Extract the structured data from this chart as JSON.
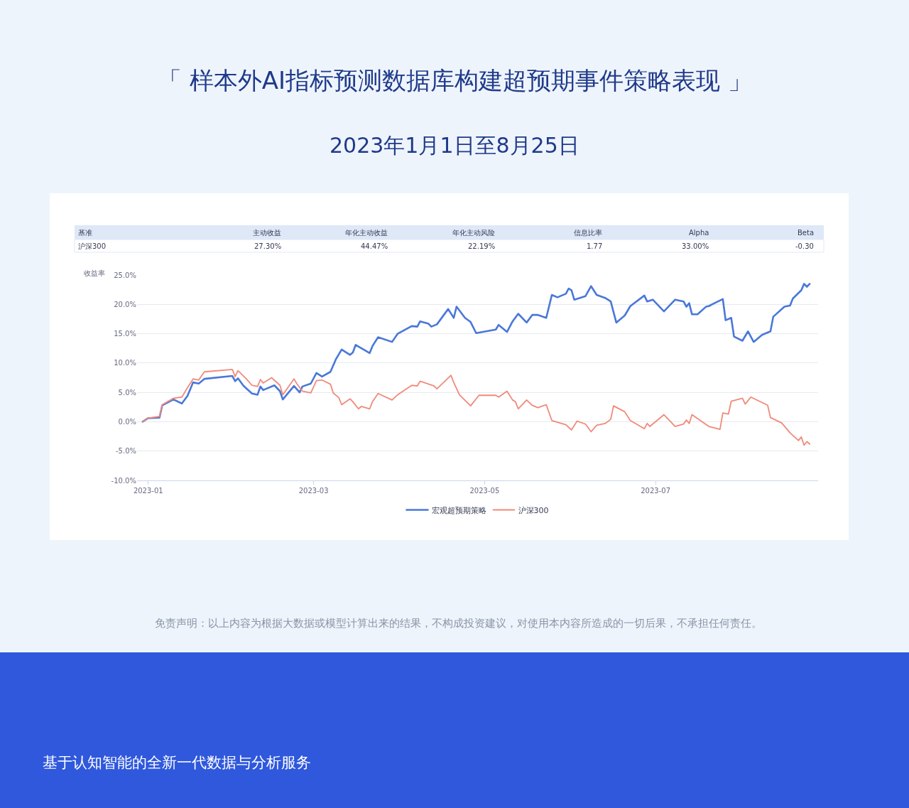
{
  "chart_data": {
    "type": "line",
    "title": "「 样本外AI指标预测数据库构建超预期事件策略表现 」",
    "subtitle": "2023年1月1日至8月25日",
    "ylabel": "收益率",
    "annotations": [
      "基准",
      "主动收益",
      "年化主动收益",
      "年化主动风险",
      "信息比率",
      "Alpha",
      "Beta",
      "沪深300",
      "27.30%",
      "44.47%",
      "22.19%",
      "1.77",
      "33.00%",
      "-0.30",
      "免责声明：以上内容为根据大数据或模型计算出来的结果，不构成投资建议，对使用本内容所造成的一切后果，不承担任何责任。",
      "基于认知智能的全新一代数据与分析服务"
    ],
    "xlim": [
      "2022-12-28",
      "2023-08-28"
    ],
    "xticks": [
      {
        "value": "2023-01-01",
        "label": "2023-01"
      },
      {
        "value": "2023-03-01",
        "label": "2023-03"
      },
      {
        "value": "2023-05-01",
        "label": "2023-05"
      },
      {
        "value": "2023-07-01",
        "label": "2023-07"
      }
    ],
    "ylim": [
      -10,
      25
    ],
    "yticks": [
      {
        "value": -10,
        "label": "-10.0%"
      },
      {
        "value": -5,
        "label": "-5.0%"
      },
      {
        "value": 0,
        "label": "0.0%"
      },
      {
        "value": 5,
        "label": "5.0%"
      },
      {
        "value": 10,
        "label": "10.0%"
      },
      {
        "value": 15,
        "label": "15.0%"
      },
      {
        "value": 20,
        "label": "20.0%"
      },
      {
        "value": 25,
        "label": "25.0%"
      }
    ],
    "grid": "y",
    "legend": "bottom",
    "marker": "none",
    "line_style": "solid",
    "series": [
      {
        "name": "宏观超预期策略",
        "color": "#4a78d8",
        "x": [
          "2022-12-30",
          "2023-01-01",
          "2023-01-05",
          "2023-01-06",
          "2023-01-10",
          "2023-01-13",
          "2023-01-15",
          "2023-01-17",
          "2023-01-19",
          "2023-01-21",
          "2023-01-31",
          "2023-02-01",
          "2023-02-02",
          "2023-02-04",
          "2023-02-07",
          "2023-02-09",
          "2023-02-10",
          "2023-02-11",
          "2023-02-15",
          "2023-02-17",
          "2023-02-18",
          "2023-02-22",
          "2023-02-24",
          "2023-02-25",
          "2023-02-28",
          "2023-03-02",
          "2023-03-04",
          "2023-03-07",
          "2023-03-09",
          "2023-03-11",
          "2023-03-14",
          "2023-03-15",
          "2023-03-16",
          "2023-03-21",
          "2023-03-22",
          "2023-03-24",
          "2023-03-29",
          "2023-03-31",
          "2023-04-05",
          "2023-04-07",
          "2023-04-08",
          "2023-04-11",
          "2023-04-12",
          "2023-04-14",
          "2023-04-18",
          "2023-04-20",
          "2023-04-21",
          "2023-04-24",
          "2023-04-26",
          "2023-04-28",
          "2023-05-05",
          "2023-05-06",
          "2023-05-09",
          "2023-05-11",
          "2023-05-13",
          "2023-05-16",
          "2023-05-18",
          "2023-05-20",
          "2023-05-23",
          "2023-05-25",
          "2023-05-27",
          "2023-05-30",
          "2023-05-31",
          "2023-06-01",
          "2023-06-02",
          "2023-06-06",
          "2023-06-08",
          "2023-06-10",
          "2023-06-13",
          "2023-06-15",
          "2023-06-17",
          "2023-06-20",
          "2023-06-22",
          "2023-06-27",
          "2023-06-28",
          "2023-06-30",
          "2023-07-04",
          "2023-07-08",
          "2023-07-11",
          "2023-07-12",
          "2023-07-13",
          "2023-07-14",
          "2023-07-16",
          "2023-07-19",
          "2023-07-20",
          "2023-07-22",
          "2023-07-25",
          "2023-07-26",
          "2023-07-28",
          "2023-07-29",
          "2023-08-01",
          "2023-08-03",
          "2023-08-05",
          "2023-08-08",
          "2023-08-11",
          "2023-08-12",
          "2023-08-16",
          "2023-08-18",
          "2023-08-19",
          "2023-08-22",
          "2023-08-23",
          "2023-08-24",
          "2023-08-25"
        ],
        "values": [
          0.0,
          0.6,
          0.7,
          2.8,
          3.8,
          3.1,
          4.4,
          6.7,
          6.5,
          7.3,
          7.8,
          6.9,
          7.4,
          6.1,
          4.8,
          4.6,
          6.0,
          5.4,
          6.2,
          5.2,
          3.8,
          6.1,
          5.0,
          6.0,
          6.5,
          8.3,
          7.7,
          8.5,
          10.7,
          12.3,
          11.4,
          11.8,
          13.1,
          11.7,
          12.9,
          14.4,
          13.6,
          15.0,
          16.3,
          16.2,
          17.1,
          16.7,
          16.2,
          16.6,
          19.2,
          17.7,
          19.6,
          17.7,
          17.0,
          15.1,
          15.7,
          16.5,
          15.3,
          17.1,
          18.4,
          16.9,
          18.2,
          18.2,
          17.7,
          21.6,
          21.2,
          21.8,
          22.7,
          22.4,
          20.8,
          21.4,
          23.1,
          21.6,
          21.1,
          20.5,
          16.9,
          18.1,
          19.7,
          21.5,
          20.5,
          20.8,
          18.8,
          20.8,
          20.5,
          19.6,
          20.2,
          18.3,
          18.3,
          19.6,
          19.7,
          20.2,
          20.9,
          17.3,
          17.7,
          14.5,
          13.8,
          15.4,
          13.6,
          14.8,
          15.4,
          17.9,
          19.6,
          19.8,
          21.0,
          22.4,
          23.5,
          23.0,
          23.5
        ]
      },
      {
        "name": "沪深300",
        "color": "#f08a7a",
        "x": [
          "2022-12-30",
          "2023-01-01",
          "2023-01-05",
          "2023-01-06",
          "2023-01-10",
          "2023-01-13",
          "2023-01-15",
          "2023-01-17",
          "2023-01-19",
          "2023-01-21",
          "2023-01-31",
          "2023-02-01",
          "2023-02-02",
          "2023-02-05",
          "2023-02-07",
          "2023-02-09",
          "2023-02-10",
          "2023-02-11",
          "2023-02-14",
          "2023-02-17",
          "2023-02-18",
          "2023-02-22",
          "2023-02-23",
          "2023-02-25",
          "2023-02-28",
          "2023-03-02",
          "2023-03-04",
          "2023-03-07",
          "2023-03-08",
          "2023-03-10",
          "2023-03-11",
          "2023-03-14",
          "2023-03-15",
          "2023-03-17",
          "2023-03-18",
          "2023-03-21",
          "2023-03-22",
          "2023-03-24",
          "2023-03-29",
          "2023-03-31",
          "2023-04-05",
          "2023-04-07",
          "2023-04-08",
          "2023-04-13",
          "2023-04-14",
          "2023-04-19",
          "2023-04-20",
          "2023-04-22",
          "2023-04-26",
          "2023-04-29",
          "2023-05-05",
          "2023-05-06",
          "2023-05-09",
          "2023-05-11",
          "2023-05-12",
          "2023-05-13",
          "2023-05-16",
          "2023-05-18",
          "2023-05-20",
          "2023-05-23",
          "2023-05-25",
          "2023-05-30",
          "2023-06-01",
          "2023-06-03",
          "2023-06-06",
          "2023-06-08",
          "2023-06-10",
          "2023-06-13",
          "2023-06-15",
          "2023-06-16",
          "2023-06-20",
          "2023-06-22",
          "2023-06-27",
          "2023-06-28",
          "2023-06-29",
          "2023-07-04",
          "2023-07-08",
          "2023-07-11",
          "2023-07-12",
          "2023-07-13",
          "2023-07-14",
          "2023-07-20",
          "2023-07-24",
          "2023-07-25",
          "2023-07-27",
          "2023-07-28",
          "2023-08-01",
          "2023-08-02",
          "2023-08-04",
          "2023-08-10",
          "2023-08-11",
          "2023-08-15",
          "2023-08-18",
          "2023-08-21",
          "2023-08-22",
          "2023-08-23",
          "2023-08-24",
          "2023-08-25"
        ],
        "values": [
          0.0,
          0.6,
          0.9,
          2.9,
          4.0,
          4.2,
          5.8,
          7.3,
          7.1,
          8.5,
          8.9,
          7.7,
          8.7,
          7.3,
          6.2,
          6.0,
          7.2,
          6.6,
          7.5,
          6.2,
          4.6,
          7.3,
          6.5,
          5.2,
          4.9,
          7.0,
          7.1,
          6.4,
          4.9,
          4.1,
          2.9,
          3.9,
          3.4,
          2.2,
          2.6,
          2.2,
          3.4,
          4.8,
          3.7,
          4.6,
          6.2,
          6.1,
          6.9,
          6.1,
          5.6,
          7.9,
          6.7,
          4.6,
          2.7,
          4.5,
          4.5,
          4.2,
          5.2,
          3.7,
          3.4,
          2.2,
          3.7,
          2.8,
          2.4,
          2.9,
          0.2,
          -0.5,
          -1.4,
          0.1,
          -0.4,
          -1.7,
          -0.6,
          -0.3,
          0.4,
          2.7,
          1.7,
          0.2,
          -1.2,
          -0.3,
          -0.8,
          1.2,
          -0.8,
          -0.4,
          0.3,
          -0.3,
          1.2,
          -0.8,
          -1.3,
          1.5,
          1.3,
          3.5,
          4.0,
          3.0,
          4.2,
          2.8,
          0.7,
          -0.2,
          -1.9,
          -3.2,
          -2.6,
          -4.0,
          -3.4,
          -3.8
        ]
      }
    ]
  }
}
